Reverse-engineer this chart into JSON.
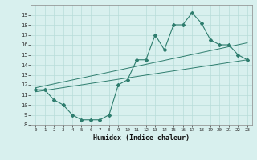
{
  "xlabel": "Humidex (Indice chaleur)",
  "ylabel": "",
  "x_wavy": [
    0,
    1,
    2,
    3,
    4,
    5,
    6,
    7,
    8,
    9,
    10,
    11,
    12,
    13,
    14,
    15,
    16,
    17,
    18,
    19,
    20,
    21,
    22,
    23
  ],
  "y_wavy": [
    11.5,
    11.5,
    10.5,
    10.0,
    9.0,
    8.5,
    8.5,
    8.5,
    9.0,
    12.0,
    12.5,
    14.5,
    14.5,
    17.0,
    15.5,
    18.0,
    18.0,
    19.2,
    18.2,
    16.5,
    16.0,
    16.0,
    15.0,
    14.5
  ],
  "line1_x": [
    0,
    23
  ],
  "line1_y": [
    11.7,
    16.2
  ],
  "line2_x": [
    0,
    23
  ],
  "line2_y": [
    11.3,
    14.5
  ],
  "line_color": "#2e7d6e",
  "bg_color": "#d8f0ee",
  "grid_color": "#b8ddd9",
  "xlim": [
    -0.5,
    23.5
  ],
  "ylim": [
    8,
    20
  ],
  "xticks": [
    0,
    1,
    2,
    3,
    4,
    5,
    6,
    7,
    8,
    9,
    10,
    11,
    12,
    13,
    14,
    15,
    16,
    17,
    18,
    19,
    20,
    21,
    22,
    23
  ],
  "yticks": [
    8,
    9,
    10,
    11,
    12,
    13,
    14,
    15,
    16,
    17,
    18,
    19
  ]
}
